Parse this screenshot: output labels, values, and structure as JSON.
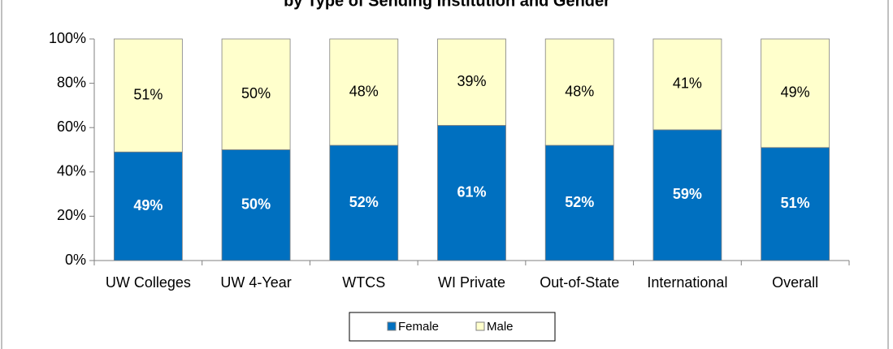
{
  "chart_data": {
    "type": "stacked_bar",
    "title": "by Type of Sending Institution and Gender",
    "categories": [
      "UW Colleges",
      "UW 4-Year",
      "WTCS",
      "WI Private",
      "Out-of-State",
      "International",
      "Overall"
    ],
    "series": [
      {
        "name": "Female",
        "color": "#0070c0",
        "values": [
          49,
          50,
          52,
          61,
          52,
          59,
          51
        ],
        "value_labels": [
          "49%",
          "50%",
          "52%",
          "61%",
          "52%",
          "59%",
          "51%"
        ]
      },
      {
        "name": "Male",
        "color": "#ffffcc",
        "values": [
          51,
          50,
          48,
          39,
          48,
          41,
          49
        ],
        "value_labels": [
          "51%",
          "50%",
          "48%",
          "39%",
          "48%",
          "41%",
          "49%"
        ]
      }
    ],
    "ylim": [
      0,
      100
    ],
    "yticks": [
      {
        "value": 0,
        "label": "0%"
      },
      {
        "value": 20,
        "label": "20%"
      },
      {
        "value": 40,
        "label": "40%"
      },
      {
        "value": 60,
        "label": "60%"
      },
      {
        "value": 80,
        "label": "80%"
      },
      {
        "value": 100,
        "label": "100%"
      }
    ],
    "legend": "bottom"
  }
}
